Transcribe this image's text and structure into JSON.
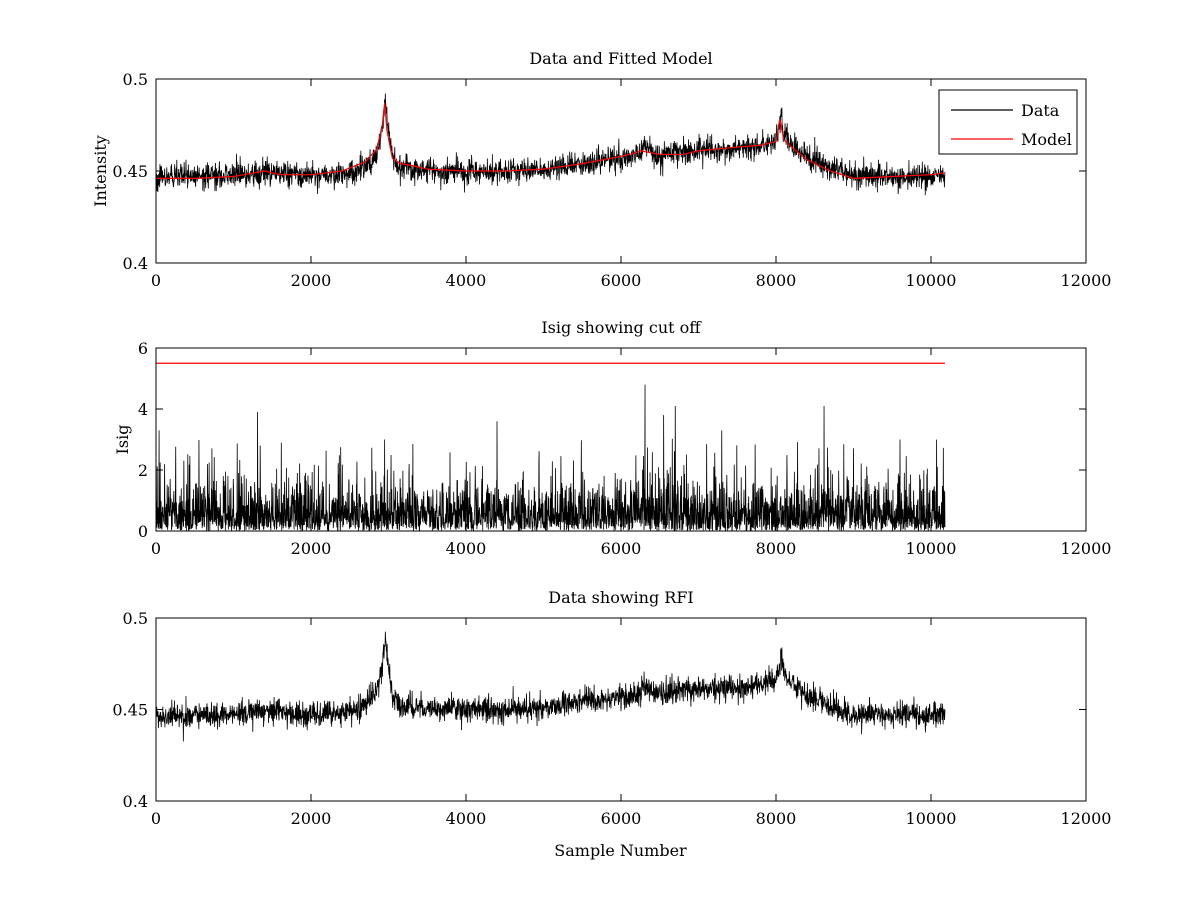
{
  "figure": {
    "xlabel": "Sample Number"
  },
  "chart_data": [
    {
      "type": "line",
      "title": "Data and Fitted Model",
      "xlabel": "",
      "ylabel": "Intensity",
      "xlim": [
        0,
        12000
      ],
      "ylim": [
        0.4,
        0.5
      ],
      "xticks": [
        0,
        2000,
        4000,
        6000,
        8000,
        10000,
        12000
      ],
      "yticks": [
        0.4,
        0.45,
        0.5
      ],
      "xtick_labels": [
        "0",
        "2000",
        "4000",
        "6000",
        "8000",
        "10000",
        "12000"
      ],
      "ytick_labels": [
        "0.4",
        "0.45",
        "0.5"
      ],
      "grid": false,
      "legend": {
        "placement": "top-right",
        "entries": [
          "Data",
          "Model"
        ]
      },
      "series": [
        {
          "name": "Data",
          "color": "#000000",
          "style": "noisy",
          "x_range": [
            0,
            10180
          ],
          "noise_amplitude": 0.006,
          "baseline": {
            "x": [
              0,
              500,
              1000,
              1500,
              2000,
              2500,
              2750,
              2850,
              2920,
              2960,
              3000,
              3060,
              3150,
              3300,
              3600,
              4000,
              4500,
              5000,
              5500,
              6000,
              6250,
              6300,
              6400,
              6500,
              6700,
              7000,
              7500,
              7800,
              8000,
              8060,
              8150,
              8400,
              8700,
              9000,
              9500,
              10000,
              10180
            ],
            "y": [
              0.446,
              0.447,
              0.448,
              0.449,
              0.447,
              0.449,
              0.454,
              0.46,
              0.474,
              0.488,
              0.472,
              0.456,
              0.452,
              0.451,
              0.45,
              0.45,
              0.45,
              0.451,
              0.454,
              0.457,
              0.459,
              0.466,
              0.46,
              0.458,
              0.461,
              0.461,
              0.462,
              0.464,
              0.466,
              0.478,
              0.466,
              0.458,
              0.452,
              0.447,
              0.447,
              0.447,
              0.447
            ]
          }
        },
        {
          "name": "Model",
          "color": "#ff0000",
          "style": "smooth",
          "x": [
            0,
            500,
            1000,
            1400,
            1600,
            2000,
            2400,
            2700,
            2850,
            2920,
            2950,
            2980,
            3050,
            3150,
            3300,
            3500,
            4000,
            4500,
            5000,
            5500,
            6000,
            6200,
            6250,
            6500,
            6800,
            7000,
            7500,
            7800,
            8000,
            8050,
            8100,
            8200,
            8400,
            8700,
            9000,
            9500,
            10000,
            10180
          ],
          "y": [
            0.446,
            0.446,
            0.447,
            0.45,
            0.448,
            0.448,
            0.45,
            0.455,
            0.462,
            0.475,
            0.487,
            0.472,
            0.457,
            0.454,
            0.453,
            0.451,
            0.45,
            0.45,
            0.451,
            0.454,
            0.458,
            0.46,
            0.461,
            0.459,
            0.459,
            0.461,
            0.463,
            0.464,
            0.466,
            0.478,
            0.467,
            0.463,
            0.456,
            0.45,
            0.446,
            0.447,
            0.448,
            0.449
          ]
        }
      ]
    },
    {
      "type": "line",
      "title": "Isig showing cut off",
      "xlabel": "",
      "ylabel": "Isig",
      "xlim": [
        0,
        12000
      ],
      "ylim": [
        0,
        6
      ],
      "xticks": [
        0,
        2000,
        4000,
        6000,
        8000,
        10000,
        12000
      ],
      "yticks": [
        0,
        2,
        4,
        6
      ],
      "xtick_labels": [
        "0",
        "2000",
        "4000",
        "6000",
        "8000",
        "10000",
        "12000"
      ],
      "ytick_labels": [
        "0",
        "2",
        "4",
        "6"
      ],
      "grid": false,
      "series": [
        {
          "name": "Isig",
          "color": "#000000",
          "style": "spiky",
          "x_range": [
            0,
            10180
          ],
          "typical_max": 2.0,
          "peaks": [
            {
              "x": 40,
              "y": 3.3
            },
            {
              "x": 1310,
              "y": 3.9
            },
            {
              "x": 2950,
              "y": 3.0
            },
            {
              "x": 4400,
              "y": 3.6
            },
            {
              "x": 6310,
              "y": 4.8
            },
            {
              "x": 6550,
              "y": 3.8
            },
            {
              "x": 6700,
              "y": 4.1
            },
            {
              "x": 7300,
              "y": 3.3
            },
            {
              "x": 8620,
              "y": 4.1
            },
            {
              "x": 9600,
              "y": 3.0
            }
          ]
        },
        {
          "name": "cut off",
          "color": "#ff0000",
          "style": "flat",
          "x": [
            0,
            10180
          ],
          "y": [
            5.5,
            5.5
          ]
        }
      ]
    },
    {
      "type": "line",
      "title": "Data showing RFI",
      "xlabel": "Sample Number",
      "ylabel": "",
      "xlim": [
        0,
        12000
      ],
      "ylim": [
        0.4,
        0.5
      ],
      "xticks": [
        0,
        2000,
        4000,
        6000,
        8000,
        10000,
        12000
      ],
      "yticks": [
        0.4,
        0.45,
        0.5
      ],
      "xtick_labels": [
        "0",
        "2000",
        "4000",
        "6000",
        "8000",
        "10000",
        "12000"
      ],
      "ytick_labels": [
        "0.4",
        "0.45",
        "0.5"
      ],
      "grid": false,
      "series": [
        {
          "name": "Data",
          "color": "#000000",
          "style": "noisy",
          "x_range": [
            0,
            10180
          ],
          "noise_amplitude": 0.006,
          "baseline": {
            "x": [
              0,
              500,
              1000,
              1500,
              2000,
              2500,
              2750,
              2850,
              2920,
              2960,
              3000,
              3060,
              3150,
              3300,
              3600,
              4000,
              4500,
              5000,
              5500,
              6000,
              6250,
              6300,
              6400,
              6500,
              6700,
              7000,
              7500,
              7800,
              8000,
              8060,
              8150,
              8400,
              8700,
              9000,
              9500,
              10000,
              10180
            ],
            "y": [
              0.446,
              0.447,
              0.448,
              0.449,
              0.447,
              0.449,
              0.454,
              0.46,
              0.474,
              0.488,
              0.472,
              0.456,
              0.452,
              0.451,
              0.45,
              0.45,
              0.45,
              0.451,
              0.454,
              0.457,
              0.459,
              0.466,
              0.46,
              0.458,
              0.461,
              0.461,
              0.462,
              0.464,
              0.466,
              0.478,
              0.466,
              0.458,
              0.452,
              0.447,
              0.447,
              0.447,
              0.447
            ]
          }
        }
      ]
    }
  ]
}
